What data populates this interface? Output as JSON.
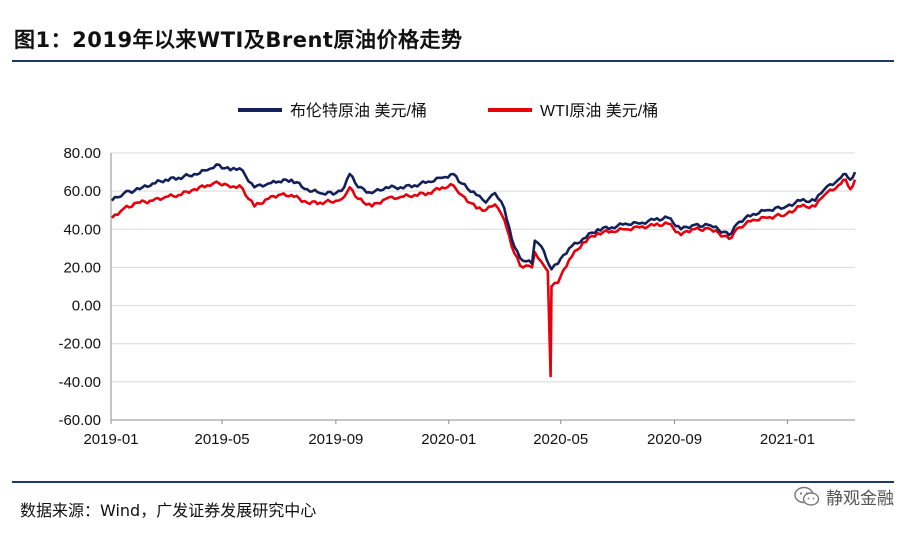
{
  "title": "图1：2019年以来WTI及Brent原油价格走势",
  "source": "数据来源：Wind，广发证券发展研究中心",
  "watermark": "静观金融",
  "colors": {
    "rule": "#1f3864",
    "brent": "#14205a",
    "wti": "#e8000b"
  },
  "chart_data": {
    "type": "line",
    "title": "",
    "xlabel": "",
    "ylabel": "",
    "ylim": [
      -60,
      80
    ],
    "yticks": [
      "80.00",
      "60.00",
      "40.00",
      "20.00",
      "0.00",
      "-20.00",
      "-40.00",
      "-60.00"
    ],
    "xticks": [
      "2019-01",
      "2019-05",
      "2019-09",
      "2020-01",
      "2020-05",
      "2020-09",
      "2021-01"
    ],
    "xrange": [
      "2019-01-01",
      "2021-03-15"
    ],
    "grid": "horizontal",
    "legend": "top-center",
    "series": [
      {
        "name": "布伦特原油 美元/桶",
        "color": "#14205a",
        "points": [
          [
            "2019-01-02",
            55
          ],
          [
            "2019-01-15",
            59
          ],
          [
            "2019-02-01",
            61
          ],
          [
            "2019-02-15",
            64
          ],
          [
            "2019-03-01",
            66
          ],
          [
            "2019-03-15",
            67
          ],
          [
            "2019-04-01",
            69
          ],
          [
            "2019-04-15",
            71
          ],
          [
            "2019-04-25",
            74
          ],
          [
            "2019-05-10",
            71
          ],
          [
            "2019-05-20",
            72
          ],
          [
            "2019-06-05",
            62
          ],
          [
            "2019-06-20",
            64
          ],
          [
            "2019-07-01",
            65
          ],
          [
            "2019-07-15",
            66
          ],
          [
            "2019-08-01",
            61
          ],
          [
            "2019-08-15",
            59
          ],
          [
            "2019-09-01",
            59
          ],
          [
            "2019-09-10",
            62
          ],
          [
            "2019-09-16",
            69
          ],
          [
            "2019-09-25",
            62
          ],
          [
            "2019-10-10",
            59
          ],
          [
            "2019-10-25",
            62
          ],
          [
            "2019-11-10",
            62
          ],
          [
            "2019-11-25",
            63
          ],
          [
            "2019-12-10",
            65
          ],
          [
            "2019-12-25",
            67
          ],
          [
            "2020-01-06",
            69
          ],
          [
            "2020-01-15",
            64
          ],
          [
            "2020-01-31",
            58
          ],
          [
            "2020-02-10",
            54
          ],
          [
            "2020-02-20",
            59
          ],
          [
            "2020-03-01",
            51
          ],
          [
            "2020-03-09",
            35
          ],
          [
            "2020-03-18",
            25
          ],
          [
            "2020-03-31",
            22
          ],
          [
            "2020-04-03",
            34
          ],
          [
            "2020-04-10",
            31
          ],
          [
            "2020-04-21",
            19
          ],
          [
            "2020-04-28",
            22
          ],
          [
            "2020-05-10",
            30
          ],
          [
            "2020-05-25",
            35
          ],
          [
            "2020-06-10",
            40
          ],
          [
            "2020-06-25",
            41
          ],
          [
            "2020-07-10",
            43
          ],
          [
            "2020-07-25",
            43
          ],
          [
            "2020-08-10",
            45
          ],
          [
            "2020-08-25",
            46
          ],
          [
            "2020-09-08",
            40
          ],
          [
            "2020-09-20",
            42
          ],
          [
            "2020-10-10",
            42
          ],
          [
            "2020-10-30",
            37
          ],
          [
            "2020-11-10",
            44
          ],
          [
            "2020-11-25",
            48
          ],
          [
            "2020-12-10",
            50
          ],
          [
            "2020-12-31",
            52
          ],
          [
            "2021-01-15",
            55
          ],
          [
            "2021-01-31",
            55
          ],
          [
            "2021-02-10",
            61
          ],
          [
            "2021-02-25",
            66
          ],
          [
            "2021-03-05",
            69
          ],
          [
            "2021-03-10",
            66
          ],
          [
            "2021-03-15",
            70
          ]
        ]
      },
      {
        "name": "WTI原油 美元/桶",
        "color": "#e8000b",
        "points": [
          [
            "2019-01-02",
            46
          ],
          [
            "2019-01-15",
            51
          ],
          [
            "2019-02-01",
            54
          ],
          [
            "2019-02-15",
            55
          ],
          [
            "2019-03-01",
            57
          ],
          [
            "2019-03-15",
            58
          ],
          [
            "2019-04-01",
            61
          ],
          [
            "2019-04-15",
            63
          ],
          [
            "2019-04-25",
            65
          ],
          [
            "2019-05-10",
            62
          ],
          [
            "2019-05-20",
            63
          ],
          [
            "2019-06-05",
            52
          ],
          [
            "2019-06-20",
            56
          ],
          [
            "2019-07-01",
            58
          ],
          [
            "2019-07-15",
            58
          ],
          [
            "2019-08-01",
            54
          ],
          [
            "2019-08-15",
            54
          ],
          [
            "2019-09-01",
            55
          ],
          [
            "2019-09-10",
            57
          ],
          [
            "2019-09-16",
            62
          ],
          [
            "2019-09-25",
            56
          ],
          [
            "2019-10-10",
            52
          ],
          [
            "2019-10-25",
            56
          ],
          [
            "2019-11-10",
            57
          ],
          [
            "2019-11-25",
            58
          ],
          [
            "2019-12-10",
            59
          ],
          [
            "2019-12-25",
            62
          ],
          [
            "2020-01-06",
            63
          ],
          [
            "2020-01-15",
            58
          ],
          [
            "2020-01-31",
            51
          ],
          [
            "2020-02-10",
            50
          ],
          [
            "2020-02-20",
            53
          ],
          [
            "2020-03-01",
            45
          ],
          [
            "2020-03-09",
            31
          ],
          [
            "2020-03-18",
            21
          ],
          [
            "2020-03-31",
            20
          ],
          [
            "2020-04-03",
            28
          ],
          [
            "2020-04-10",
            23
          ],
          [
            "2020-04-17",
            18
          ],
          [
            "2020-04-20",
            -37
          ],
          [
            "2020-04-21",
            10
          ],
          [
            "2020-04-28",
            12
          ],
          [
            "2020-05-10",
            24
          ],
          [
            "2020-05-25",
            33
          ],
          [
            "2020-06-10",
            38
          ],
          [
            "2020-06-25",
            39
          ],
          [
            "2020-07-10",
            40
          ],
          [
            "2020-07-25",
            41
          ],
          [
            "2020-08-10",
            42
          ],
          [
            "2020-08-25",
            43
          ],
          [
            "2020-09-08",
            37
          ],
          [
            "2020-09-20",
            40
          ],
          [
            "2020-10-10",
            40
          ],
          [
            "2020-10-30",
            35
          ],
          [
            "2020-11-10",
            41
          ],
          [
            "2020-11-25",
            45
          ],
          [
            "2020-12-10",
            46
          ],
          [
            "2020-12-31",
            48
          ],
          [
            "2021-01-15",
            52
          ],
          [
            "2021-01-31",
            52
          ],
          [
            "2021-02-10",
            58
          ],
          [
            "2021-02-25",
            63
          ],
          [
            "2021-03-05",
            66
          ],
          [
            "2021-03-10",
            61
          ],
          [
            "2021-03-15",
            66
          ]
        ]
      }
    ]
  }
}
